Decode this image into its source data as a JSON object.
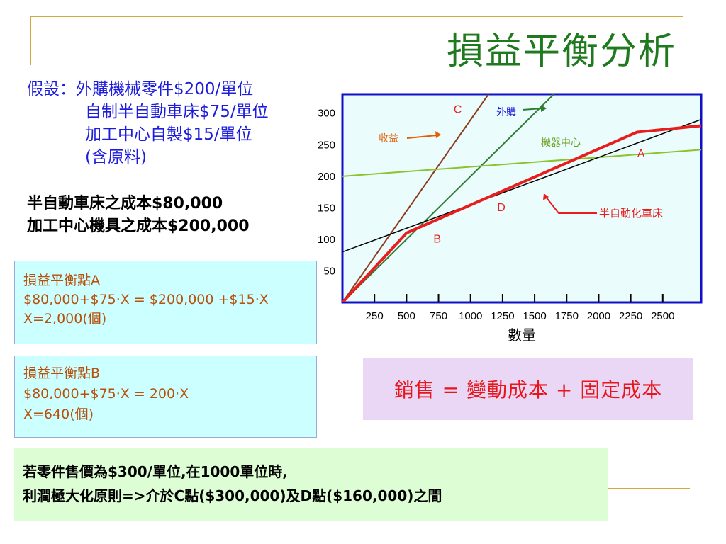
{
  "page": {
    "title": "損益平衡分析"
  },
  "assumptions": {
    "line1": "假設：外購機械零件$200/單位",
    "line2": "自制半自動車床$75/單位",
    "line3": "加工中心自製$15/單位",
    "line4": "(含原料)"
  },
  "fixed_costs": {
    "line1": "半自動車床之成本$80,000",
    "line2": "加工中心機具之成本$200,000"
  },
  "breakeven_a": {
    "heading": "損益平衡點A",
    "equation": "$80,000+$75·X = $200,000 +$15·X",
    "result": "X=2,000(個)"
  },
  "breakeven_b": {
    "heading": "損益平衡點B",
    "equation": "$80,000+$75·X = 200·X",
    "result": "X=640(個)"
  },
  "formula": "銷售 = 變動成本 + 固定成本",
  "conclusion": {
    "line1": "若零件售價為$300/單位,在1000單位時,",
    "line2": "利潤極大化原則=>介於C點($300,000)及D點($160,000)之間"
  },
  "colors": {
    "title": "#1f7a1f",
    "accent_rule": "#d4a93b",
    "assumption_text": "#1c1cdc",
    "breakeven_text": "#b8500a",
    "formula_text": "#e6161b",
    "chart_border": "#1010c8",
    "chart_bg": "#eafcfc"
  },
  "chart_data": {
    "type": "line",
    "title": "",
    "xlabel": "數量",
    "ylabel": "",
    "xlim": [
      0,
      2800
    ],
    "ylim": [
      0,
      330
    ],
    "x_ticks": [
      "250",
      "500",
      "750",
      "1000",
      "1250",
      "1500",
      "1750",
      "2000",
      "2250",
      "2500"
    ],
    "y_ticks": [
      "50",
      "100",
      "150",
      "200",
      "250",
      "300"
    ],
    "series": [
      {
        "name": "收益",
        "color": "#8b3a1e",
        "width": 2,
        "points": [
          [
            0,
            0
          ],
          [
            1140,
            330
          ]
        ]
      },
      {
        "name": "外購",
        "color": "#2e7d32",
        "width": 2,
        "points": [
          [
            0,
            0
          ],
          [
            1650,
            330
          ]
        ]
      },
      {
        "name": "機器中心",
        "color": "#8dc22a",
        "width": 2,
        "points": [
          [
            0,
            200
          ],
          [
            2800,
            242
          ]
        ]
      },
      {
        "name": "",
        "color": "#000000",
        "width": 1.5,
        "points": [
          [
            0,
            80
          ],
          [
            2800,
            290
          ]
        ]
      },
      {
        "name": "半自動化車床",
        "color": "#e81e1e",
        "width": 4,
        "points": [
          [
            0,
            0
          ],
          [
            500,
            110
          ],
          [
            2300,
            270
          ],
          [
            2800,
            280
          ]
        ]
      }
    ],
    "point_labels": [
      {
        "text": "A",
        "x": 2330,
        "y": 230,
        "color": "#e81e1e"
      },
      {
        "text": "B",
        "x": 740,
        "y": 95,
        "color": "#e81e1e"
      },
      {
        "text": "C",
        "x": 900,
        "y": 300,
        "color": "#e81e1e"
      },
      {
        "text": "D",
        "x": 1240,
        "y": 145,
        "color": "#e81e1e"
      }
    ],
    "annotations": [
      {
        "text": "外購",
        "color": "#1c1cdc"
      },
      {
        "text": "收益",
        "color": "#e65c00"
      },
      {
        "text": "機器中心",
        "color": "#6aa020"
      },
      {
        "text": "半自動化車床",
        "color": "#e81e1e"
      }
    ]
  }
}
